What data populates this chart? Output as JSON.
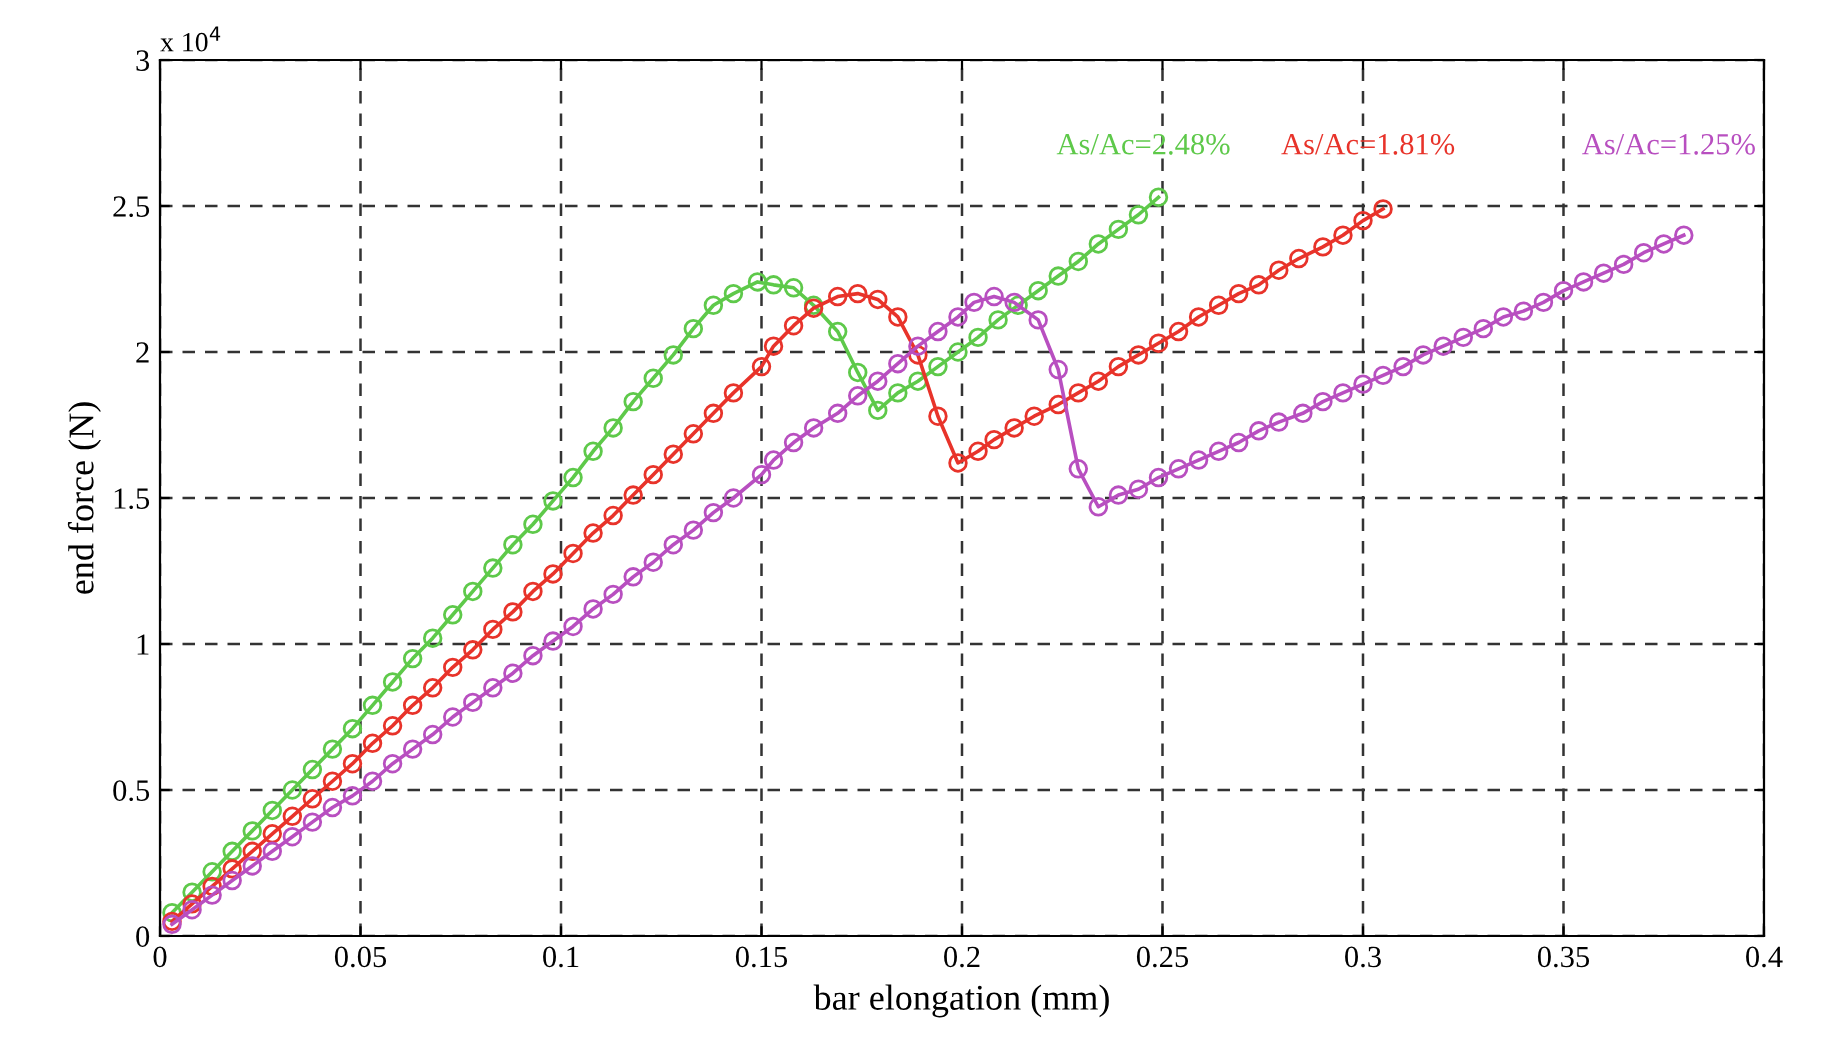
{
  "chart_data": {
    "type": "line",
    "xlabel": "bar elongation (mm)",
    "ylabel": "end force (N)",
    "annotations": [
      "x 10$^{4}$"
    ],
    "xlim": [
      0,
      0.4
    ],
    "xticks": [
      0,
      0.05,
      0.1,
      0.15,
      0.2,
      0.25,
      0.3,
      0.35,
      0.4
    ],
    "ylim": [
      0,
      3
    ],
    "yticks": [
      0,
      0.5,
      1,
      1.5,
      2,
      2.5,
      3
    ],
    "grid": true,
    "marker": "circle",
    "line_style": "solid",
    "legend": false,
    "series": [
      {
        "name": "As/Ac=2.48%",
        "color": "#5ec94a",
        "x": [
          0.003,
          0.008,
          0.013,
          0.018,
          0.023,
          0.028,
          0.033,
          0.038,
          0.043,
          0.048,
          0.053,
          0.058,
          0.063,
          0.068,
          0.073,
          0.078,
          0.083,
          0.088,
          0.093,
          0.098,
          0.103,
          0.108,
          0.113,
          0.118,
          0.123,
          0.128,
          0.133,
          0.138,
          0.143,
          0.149,
          0.153,
          0.158,
          0.163,
          0.169,
          0.174,
          0.179,
          0.184,
          0.189,
          0.194,
          0.199,
          0.204,
          0.209,
          0.214,
          0.219,
          0.224,
          0.229,
          0.234,
          0.239,
          0.244,
          0.249
        ],
        "values": [
          0.08,
          0.15,
          0.22,
          0.29,
          0.36,
          0.43,
          0.5,
          0.57,
          0.64,
          0.71,
          0.79,
          0.87,
          0.95,
          1.02,
          1.1,
          1.18,
          1.26,
          1.34,
          1.41,
          1.49,
          1.57,
          1.66,
          1.74,
          1.83,
          1.91,
          1.99,
          2.08,
          2.16,
          2.2,
          2.24,
          2.23,
          2.22,
          2.16,
          2.07,
          1.93,
          1.8,
          1.86,
          1.9,
          1.95,
          2.0,
          2.05,
          2.11,
          2.16,
          2.21,
          2.26,
          2.31,
          2.37,
          2.42,
          2.47,
          2.53
        ]
      },
      {
        "name": "As/Ac=1.81%",
        "color": "#e8332a",
        "x": [
          0.003,
          0.008,
          0.013,
          0.018,
          0.023,
          0.028,
          0.033,
          0.038,
          0.043,
          0.048,
          0.053,
          0.058,
          0.063,
          0.068,
          0.073,
          0.078,
          0.083,
          0.088,
          0.093,
          0.098,
          0.103,
          0.108,
          0.113,
          0.118,
          0.123,
          0.128,
          0.133,
          0.138,
          0.143,
          0.15,
          0.153,
          0.158,
          0.163,
          0.169,
          0.174,
          0.179,
          0.184,
          0.189,
          0.194,
          0.199,
          0.204,
          0.208,
          0.213,
          0.218,
          0.224,
          0.229,
          0.234,
          0.239,
          0.244,
          0.249,
          0.254,
          0.259,
          0.264,
          0.269,
          0.274,
          0.279,
          0.284,
          0.29,
          0.295,
          0.3,
          0.305
        ],
        "values": [
          0.05,
          0.11,
          0.17,
          0.23,
          0.29,
          0.35,
          0.41,
          0.47,
          0.53,
          0.59,
          0.66,
          0.72,
          0.79,
          0.85,
          0.92,
          0.98,
          1.05,
          1.11,
          1.18,
          1.24,
          1.31,
          1.38,
          1.44,
          1.51,
          1.58,
          1.65,
          1.72,
          1.79,
          1.86,
          1.95,
          2.02,
          2.09,
          2.15,
          2.19,
          2.2,
          2.18,
          2.12,
          1.99,
          1.78,
          1.62,
          1.66,
          1.7,
          1.74,
          1.78,
          1.82,
          1.86,
          1.9,
          1.95,
          1.99,
          2.03,
          2.07,
          2.12,
          2.16,
          2.2,
          2.23,
          2.28,
          2.32,
          2.36,
          2.4,
          2.45,
          2.49
        ]
      },
      {
        "name": "As/Ac=1.25%",
        "color": "#b84fc0",
        "x": [
          0.003,
          0.008,
          0.013,
          0.018,
          0.023,
          0.028,
          0.033,
          0.038,
          0.043,
          0.048,
          0.053,
          0.058,
          0.063,
          0.068,
          0.073,
          0.078,
          0.083,
          0.088,
          0.093,
          0.098,
          0.103,
          0.108,
          0.113,
          0.118,
          0.123,
          0.128,
          0.133,
          0.138,
          0.143,
          0.15,
          0.153,
          0.158,
          0.163,
          0.169,
          0.174,
          0.179,
          0.184,
          0.189,
          0.194,
          0.199,
          0.203,
          0.208,
          0.213,
          0.219,
          0.224,
          0.229,
          0.234,
          0.239,
          0.244,
          0.249,
          0.254,
          0.259,
          0.264,
          0.269,
          0.274,
          0.279,
          0.285,
          0.29,
          0.295,
          0.3,
          0.305,
          0.31,
          0.315,
          0.32,
          0.325,
          0.33,
          0.335,
          0.34,
          0.345,
          0.35,
          0.355,
          0.36,
          0.365,
          0.37,
          0.375,
          0.38
        ],
        "values": [
          0.04,
          0.09,
          0.14,
          0.19,
          0.24,
          0.29,
          0.34,
          0.39,
          0.44,
          0.48,
          0.53,
          0.59,
          0.64,
          0.69,
          0.75,
          0.8,
          0.85,
          0.9,
          0.96,
          1.01,
          1.06,
          1.12,
          1.17,
          1.23,
          1.28,
          1.34,
          1.39,
          1.45,
          1.5,
          1.58,
          1.63,
          1.69,
          1.74,
          1.79,
          1.85,
          1.9,
          1.96,
          2.02,
          2.07,
          2.12,
          2.17,
          2.19,
          2.17,
          2.11,
          1.94,
          1.6,
          1.47,
          1.51,
          1.53,
          1.57,
          1.6,
          1.63,
          1.66,
          1.69,
          1.73,
          1.76,
          1.79,
          1.83,
          1.86,
          1.89,
          1.92,
          1.95,
          1.99,
          2.02,
          2.05,
          2.08,
          2.12,
          2.14,
          2.17,
          2.21,
          2.24,
          2.27,
          2.3,
          2.34,
          2.37,
          2.4
        ]
      }
    ]
  }
}
